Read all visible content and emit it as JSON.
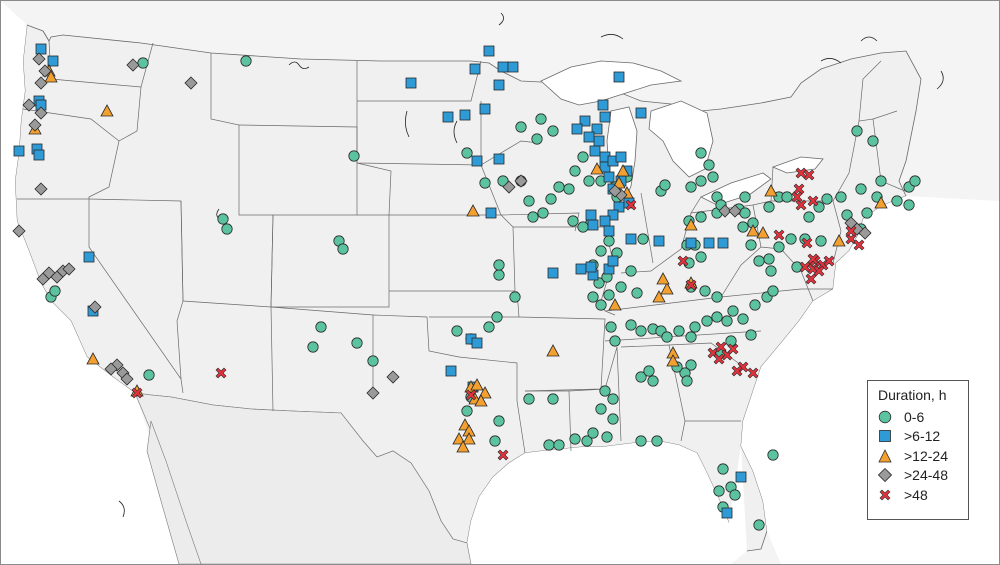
{
  "legend": {
    "title": "Duration, h",
    "items": [
      {
        "label": "0-6",
        "symbol": "circle",
        "color": "#5cc3a0"
      },
      {
        "label": ">6-12",
        "symbol": "square",
        "color": "#2e9bd6"
      },
      {
        "label": ">12-24",
        "symbol": "triangle",
        "color": "#f3a030"
      },
      {
        "label": ">24-48",
        "symbol": "diamond",
        "color": "#9a9a9a"
      },
      {
        "label": ">48",
        "symbol": "cross",
        "color": "#e2323c"
      }
    ]
  },
  "colors": {
    "land": "#f0f0f0",
    "border": "#6a6a6a",
    "water": "#ffffff",
    "frame": "#8a8a8a"
  }
}
